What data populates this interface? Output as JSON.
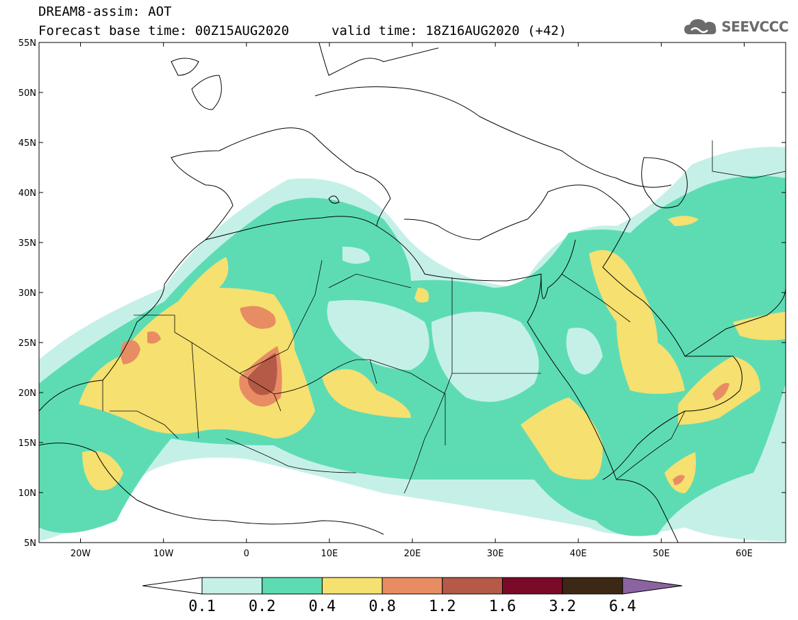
{
  "header": {
    "title": "DREAM8-assim: AOT",
    "base_time": "Forecast base time: 00Z15AUG2020",
    "valid_time": "valid time: 18Z16AUG2020 (+42)"
  },
  "logo": {
    "text": "SEEVCCC",
    "icon": "cloud-icon",
    "color": "#6b6b6b"
  },
  "map": {
    "projection": "plate-carree",
    "lon_range": [
      -25,
      65
    ],
    "lat_range": [
      5,
      55
    ],
    "lat_ticks": [
      "5N",
      "10N",
      "15N",
      "20N",
      "25N",
      "30N",
      "35N",
      "40N",
      "45N",
      "50N",
      "55N"
    ],
    "lon_ticks": [
      "20W",
      "10W",
      "0",
      "10E",
      "20E",
      "30E",
      "40E",
      "50E",
      "60E"
    ],
    "variable": "Aerosol optical thickness (dust)"
  },
  "colorbar": {
    "labels": [
      "0.1",
      "0.2",
      "0.4",
      "0.8",
      "1.2",
      "1.6",
      "3.2",
      "6.4"
    ],
    "colors": [
      "#c5f0e8",
      "#5ddcb4",
      "#f5e070",
      "#e88c64",
      "#b45a46",
      "#7a0a28",
      "#3c2814",
      "#8a64a0"
    ]
  }
}
